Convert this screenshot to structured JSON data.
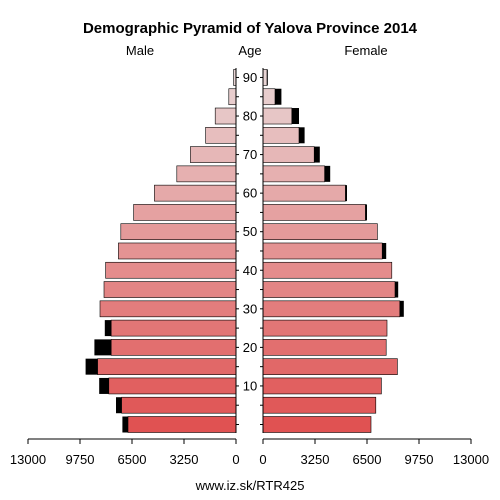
{
  "chart_data": {
    "type": "bar",
    "title": "Demographic Pyramid of Yalova Province 2014",
    "left_label": "Male",
    "center_label": "Age",
    "right_label": "Female",
    "source": "www.iz.sk/RTR425",
    "xlim": [
      0,
      13000
    ],
    "x_ticks": [
      "13000",
      "9750",
      "6500",
      "3250",
      "0",
      "0",
      "3250",
      "6500",
      "9750",
      "13000"
    ],
    "age_ticks": [
      "10",
      "20",
      "30",
      "40",
      "50",
      "60",
      "70",
      "80",
      "90"
    ],
    "age_groups": [
      "0-4",
      "5-9",
      "10-14",
      "15-19",
      "20-24",
      "25-29",
      "30-34",
      "35-39",
      "40-44",
      "45-49",
      "50-54",
      "55-59",
      "60-64",
      "65-69",
      "70-74",
      "75-79",
      "80-84",
      "85-89",
      "90+"
    ],
    "series": [
      {
        "name": "Male",
        "values": [
          6750,
          7150,
          7950,
          8650,
          7800,
          7800,
          8500,
          8250,
          8150,
          7350,
          7200,
          6400,
          5100,
          3700,
          2850,
          1900,
          1300,
          450,
          150
        ],
        "excess": [
          350,
          350,
          600,
          750,
          1050,
          400,
          0,
          0,
          0,
          0,
          0,
          0,
          0,
          0,
          0,
          0,
          0,
          0,
          0
        ]
      },
      {
        "name": "Female",
        "values": [
          6750,
          7050,
          7400,
          8400,
          7700,
          7750,
          8550,
          8250,
          8050,
          7450,
          7150,
          6400,
          5150,
          3850,
          3200,
          2250,
          1800,
          750,
          250
        ],
        "excess": [
          0,
          0,
          0,
          0,
          0,
          0,
          250,
          200,
          0,
          250,
          0,
          100,
          100,
          350,
          350,
          350,
          450,
          400,
          50
        ]
      }
    ],
    "colors": {
      "bar_young": "#e05252",
      "bar_old": "#e8d4d4",
      "excess": "#000000",
      "axis": "#000000"
    }
  }
}
